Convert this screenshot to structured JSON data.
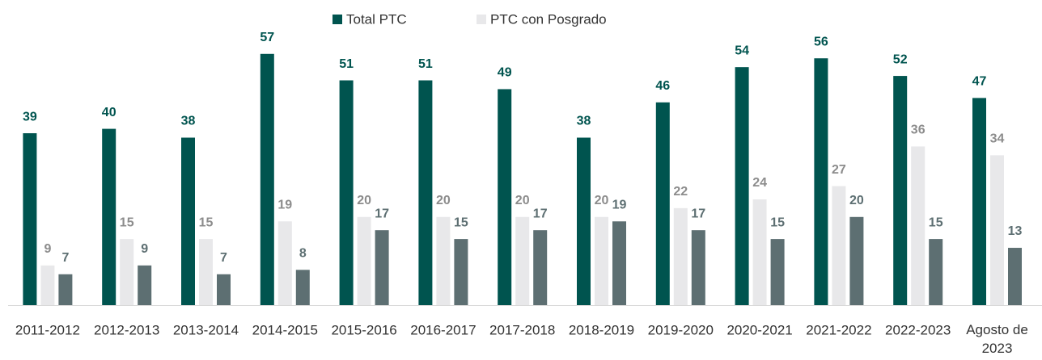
{
  "chart_data": {
    "type": "bar",
    "categories": [
      "2011-2012",
      "2012-2013",
      "2013-2014",
      "2014-2015",
      "2015-2016",
      "2016-2017",
      "2017-2018",
      "2018-2019",
      "2019-2020",
      "2020-2021",
      "2021-2022",
      "2022-2023",
      "Agosto de 2023"
    ],
    "series": [
      {
        "name": "Total PTC",
        "color": "#00544f",
        "values": [
          39,
          40,
          38,
          57,
          51,
          51,
          49,
          38,
          46,
          54,
          56,
          52,
          47
        ]
      },
      {
        "name": "PTC con Posgrado",
        "color": "#e8e8ea",
        "values": [
          9,
          15,
          15,
          19,
          20,
          20,
          20,
          20,
          22,
          24,
          27,
          36,
          34
        ]
      },
      {
        "color": "#5d6f72",
        "values": [
          7,
          9,
          7,
          8,
          17,
          15,
          17,
          19,
          17,
          15,
          20,
          15,
          13
        ]
      }
    ],
    "legend": "top"
  }
}
